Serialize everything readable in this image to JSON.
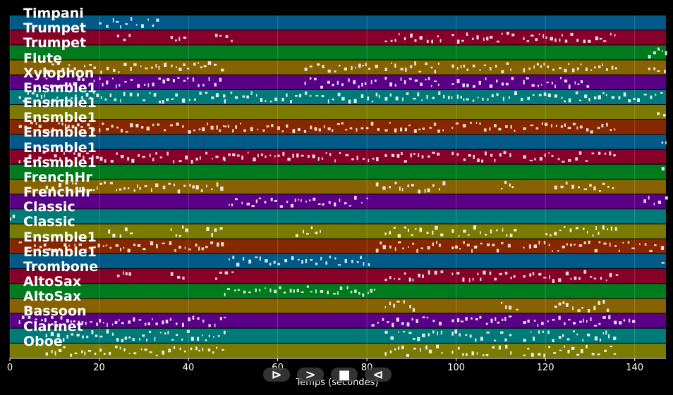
{
  "tracks": [
    {
      "name": "Timpani",
      "color": "#005a87"
    },
    {
      "name": "Trumpet",
      "color": "#870027"
    },
    {
      "name": "Trumpet",
      "color": "#007a1f"
    },
    {
      "name": "Flute",
      "color": "#876200"
    },
    {
      "name": "Xylophon",
      "color": "#5a0087"
    },
    {
      "name": "Ensmble1",
      "color": "#007a78"
    },
    {
      "name": "Ensmble1",
      "color": "#7a7a00"
    },
    {
      "name": "Ensmble1",
      "color": "#872700"
    },
    {
      "name": "Ensmble1",
      "color": "#005a87"
    },
    {
      "name": "Ensmble1",
      "color": "#870027"
    },
    {
      "name": "Ensmble1",
      "color": "#007a1f"
    },
    {
      "name": "FrenchHr",
      "color": "#876200"
    },
    {
      "name": "FrenchHr",
      "color": "#5a0087"
    },
    {
      "name": "Classic",
      "color": "#007a78"
    },
    {
      "name": "Classic",
      "color": "#7a7a00"
    },
    {
      "name": "Ensmble1",
      "color": "#872700"
    },
    {
      "name": "Ensmble1",
      "color": "#005a87"
    },
    {
      "name": "Trombone",
      "color": "#870027"
    },
    {
      "name": "AltoSax",
      "color": "#007a1f"
    },
    {
      "name": "AltoSax",
      "color": "#876200"
    },
    {
      "name": "Bassoon",
      "color": "#5a0087"
    },
    {
      "name": "Clarinet",
      "color": "#007a78"
    },
    {
      "name": "Oboe",
      "color": "#7a7a00"
    }
  ],
  "x_axis": {
    "label": "Temps (secondes)",
    "min": 0,
    "max": 147,
    "ticks": [
      "0",
      "20",
      "40",
      "60",
      "80",
      "100",
      "120",
      "140"
    ],
    "tick_values": [
      0,
      20,
      40,
      60,
      80,
      100,
      120,
      140
    ]
  },
  "controls": {
    "play_label": "⊳",
    "next_label": ">",
    "stop_label": "■",
    "rewind_label": "⊲"
  },
  "activity": [
    [
      [
        20,
        33
      ]
    ],
    [
      [
        24,
        27
      ],
      [
        36,
        40
      ],
      [
        46,
        50
      ],
      [
        84,
        97
      ],
      [
        99,
        113
      ],
      [
        115,
        136
      ]
    ],
    [
      [
        143,
        147
      ]
    ],
    [
      [
        8,
        48
      ],
      [
        66,
        82
      ],
      [
        84,
        97
      ],
      [
        99,
        113
      ],
      [
        115,
        136
      ],
      [
        143,
        147
      ]
    ],
    [
      [
        8,
        48
      ],
      [
        66,
        82
      ],
      [
        84,
        97
      ],
      [
        99,
        113
      ],
      [
        115,
        130
      ]
    ],
    [
      [
        2,
        48
      ],
      [
        48,
        83
      ],
      [
        84,
        147
      ]
    ],
    [
      [
        145,
        147
      ]
    ],
    [
      [
        2,
        48
      ],
      [
        48,
        83
      ],
      [
        84,
        97
      ],
      [
        99,
        113
      ],
      [
        115,
        136
      ]
    ],
    [
      [
        146,
        147
      ]
    ],
    [
      [
        2,
        48
      ],
      [
        48,
        83
      ],
      [
        84,
        97
      ],
      [
        99,
        113
      ],
      [
        115,
        136
      ]
    ],
    [
      [
        146,
        147
      ]
    ],
    [
      [
        8,
        48
      ],
      [
        82,
        97
      ],
      [
        110,
        113
      ],
      [
        122,
        136
      ]
    ],
    [
      [
        49,
        80
      ],
      [
        142,
        147
      ]
    ],
    [
      [
        0,
        1
      ]
    ],
    [
      [
        22,
        27
      ],
      [
        36,
        40
      ],
      [
        44,
        48
      ],
      [
        64,
        70
      ],
      [
        84,
        97
      ],
      [
        99,
        113
      ],
      [
        120,
        136
      ]
    ],
    [
      [
        2,
        48
      ],
      [
        82,
        97
      ],
      [
        99,
        113
      ],
      [
        115,
        147
      ]
    ],
    [
      [
        49,
        81
      ],
      [
        146,
        147
      ]
    ],
    [
      [
        24,
        27
      ],
      [
        36,
        40
      ],
      [
        46,
        50
      ],
      [
        84,
        97
      ],
      [
        99,
        113
      ],
      [
        115,
        136
      ]
    ],
    [
      [
        48,
        82
      ]
    ],
    [
      [
        84,
        91
      ],
      [
        110,
        114
      ],
      [
        122,
        134
      ]
    ],
    [
      [
        2,
        48
      ],
      [
        81,
        97
      ],
      [
        99,
        113
      ],
      [
        115,
        140
      ]
    ],
    [
      [
        8,
        48
      ],
      [
        84,
        97
      ],
      [
        99,
        113
      ],
      [
        115,
        136
      ]
    ],
    [
      [
        8,
        48
      ],
      [
        84,
        97
      ],
      [
        99,
        113
      ],
      [
        115,
        136
      ]
    ]
  ]
}
